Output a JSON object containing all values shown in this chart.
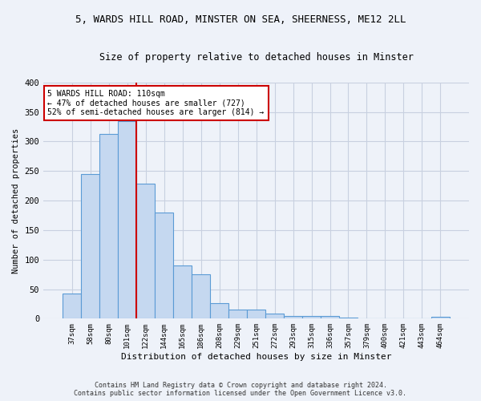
{
  "title_line1": "5, WARDS HILL ROAD, MINSTER ON SEA, SHEERNESS, ME12 2LL",
  "title_line2": "Size of property relative to detached houses in Minster",
  "xlabel": "Distribution of detached houses by size in Minster",
  "ylabel": "Number of detached properties",
  "categories": [
    "37sqm",
    "58sqm",
    "80sqm",
    "101sqm",
    "122sqm",
    "144sqm",
    "165sqm",
    "186sqm",
    "208sqm",
    "229sqm",
    "251sqm",
    "272sqm",
    "293sqm",
    "315sqm",
    "336sqm",
    "357sqm",
    "379sqm",
    "400sqm",
    "421sqm",
    "443sqm",
    "464sqm"
  ],
  "values": [
    43,
    245,
    313,
    335,
    228,
    180,
    90,
    75,
    26,
    15,
    15,
    9,
    4,
    4,
    4,
    2,
    0,
    0,
    0,
    0,
    3
  ],
  "bar_color": "#c5d8f0",
  "bar_edge_color": "#5b9bd5",
  "grid_color": "#c8d0e0",
  "background_color": "#eef2f9",
  "property_bin_index": 3,
  "red_line_color": "#cc0000",
  "annotation_line1": "5 WARDS HILL ROAD: 110sqm",
  "annotation_line2": "← 47% of detached houses are smaller (727)",
  "annotation_line3": "52% of semi-detached houses are larger (814) →",
  "annotation_box_color": "#ffffff",
  "annotation_box_edge": "#cc0000",
  "footer_line1": "Contains HM Land Registry data © Crown copyright and database right 2024.",
  "footer_line2": "Contains public sector information licensed under the Open Government Licence v3.0.",
  "ylim": [
    0,
    400
  ],
  "yticks": [
    0,
    50,
    100,
    150,
    200,
    250,
    300,
    350,
    400
  ]
}
